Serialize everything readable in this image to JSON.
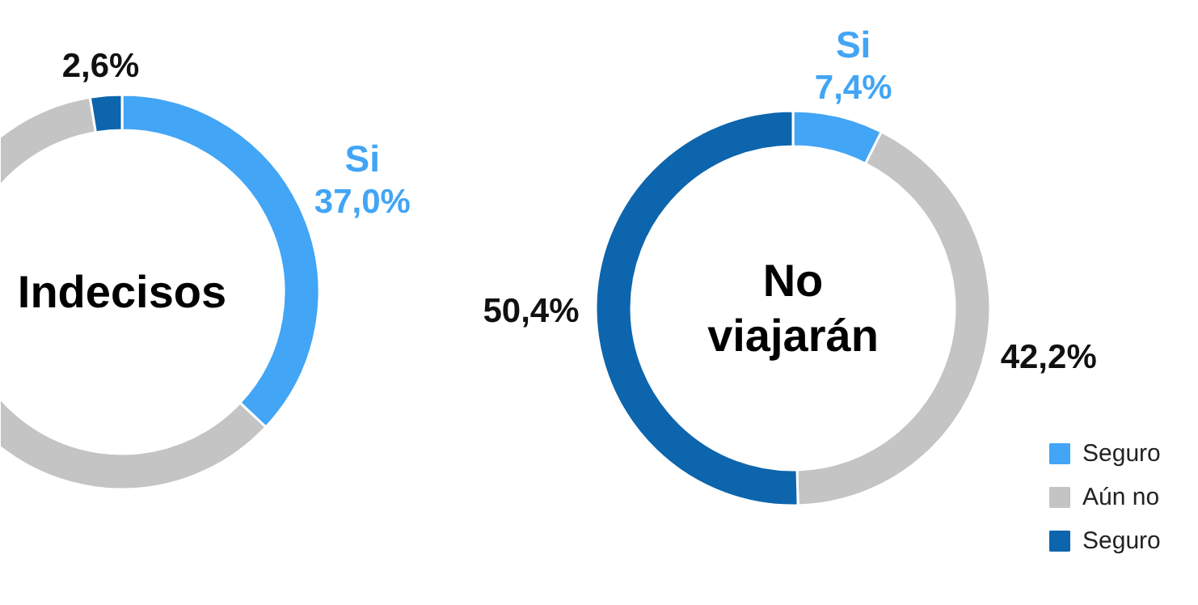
{
  "chart_data": [
    {
      "type": "donut",
      "title": "Indecisos",
      "categories": [
        null,
        null,
        null
      ],
      "values": [
        37.0,
        60.4,
        2.6
      ],
      "colors": [
        "#42a5f5",
        "#c4c4c4",
        "#0d65ad"
      ],
      "value_labels": [
        "37,0%",
        null,
        "2,6%"
      ],
      "annotations": [
        "Si"
      ],
      "legend": false
    },
    {
      "type": "donut",
      "title": "No viajarán",
      "categories": [
        "Seguro",
        "Aún no",
        "Seguro"
      ],
      "values": [
        7.4,
        42.2,
        50.4
      ],
      "colors": [
        "#42a5f5",
        "#c4c4c4",
        "#0d65ad"
      ],
      "value_labels": [
        "7,4%",
        "42,2%",
        "50,4%"
      ],
      "annotations": [
        "Si"
      ],
      "legend": "right"
    }
  ]
}
